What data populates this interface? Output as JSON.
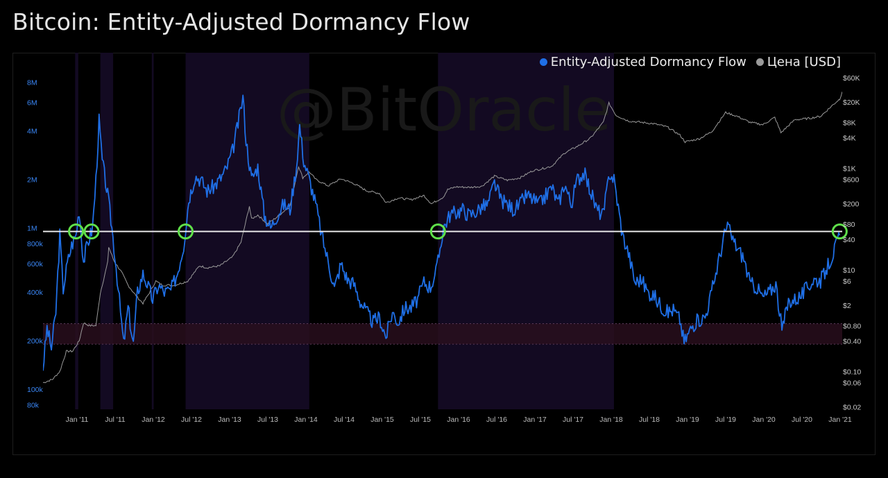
{
  "title": "Bitcoin: Entity-Adjusted Dormancy Flow",
  "watermark": "@BitOracle",
  "legend": [
    {
      "label": "Entity-Adjusted Dormancy Flow",
      "color": "#1f6fe6"
    },
    {
      "label": "Цена [USD]",
      "color": "#9a9a9a"
    }
  ],
  "chart_data": {
    "type": "line",
    "scale": "log",
    "x_ticks": [
      "Jan '11",
      "Jul '11",
      "Jan '12",
      "Jul '12",
      "Jan '13",
      "Jul '13",
      "Jan '14",
      "Jul '14",
      "Jan '15",
      "Jul '15",
      "Jan '16",
      "Jul '16",
      "Jan '17",
      "Jul '17",
      "Jan '18",
      "Jul '18",
      "Jan '19",
      "Jul '19",
      "Jan '20",
      "Jul '20",
      "Jan '21"
    ],
    "xlim": [
      "2010-08-01",
      "2021-01-01"
    ],
    "left_axis": {
      "ticks": [
        {
          "label": "8M",
          "value": 8000000
        },
        {
          "label": "6M",
          "value": 6000000
        },
        {
          "label": "4M",
          "value": 4000000
        },
        {
          "label": "2M",
          "value": 2000000
        },
        {
          "label": "1M",
          "value": 1000000
        },
        {
          "label": "800k",
          "value": 800000
        },
        {
          "label": "600k",
          "value": 600000
        },
        {
          "label": "400k",
          "value": 400000
        },
        {
          "label": "200k",
          "value": 200000
        },
        {
          "label": "100k",
          "value": 100000
        },
        {
          "label": "80k",
          "value": 80000
        }
      ],
      "ylim": [
        75000,
        10000000
      ]
    },
    "right_axis": {
      "ticks": [
        {
          "label": "$60K",
          "value": 60000
        },
        {
          "label": "$20K",
          "value": 20000
        },
        {
          "label": "$8K",
          "value": 8000
        },
        {
          "label": "$4K",
          "value": 4000
        },
        {
          "label": "$1K",
          "value": 1000
        },
        {
          "label": "$600",
          "value": 600
        },
        {
          "label": "$200",
          "value": 200
        },
        {
          "label": "$80",
          "value": 80
        },
        {
          "label": "$40",
          "value": 40
        },
        {
          "label": "$10",
          "value": 10
        },
        {
          "label": "$6",
          "value": 6
        },
        {
          "label": "$2",
          "value": 2
        },
        {
          "label": "$0.80",
          "value": 0.8
        },
        {
          "label": "$0.40",
          "value": 0.4
        },
        {
          "label": "$0.10",
          "value": 0.1
        },
        {
          "label": "$0.06",
          "value": 0.06
        },
        {
          "label": "$0.02",
          "value": 0.02
        }
      ],
      "ylim": [
        0.018,
        100000
      ]
    },
    "threshold": 950000,
    "band": [
      190000,
      255000
    ],
    "bear_periods": [
      [
        "2011-01-01",
        "2011-01-16"
      ],
      [
        "2011-05-01",
        "2011-07-01"
      ],
      [
        "2012-01-01",
        "2012-01-10"
      ],
      [
        "2012-06-10",
        "2014-01-20"
      ],
      [
        "2015-09-25",
        "2018-01-10"
      ]
    ],
    "markers": [
      "2011-01-05",
      "2011-03-20",
      "2012-06-10",
      "2015-09-25",
      "2020-12-20"
    ],
    "series": [
      {
        "name": "Entity-Adjusted Dormancy Flow",
        "color": "#1f6fe6",
        "points": [
          [
            "2010-08-01",
            135000
          ],
          [
            "2010-08-20",
            240000
          ],
          [
            "2010-09-10",
            180000
          ],
          [
            "2010-10-01",
            300000
          ],
          [
            "2010-10-20",
            900000
          ],
          [
            "2010-11-05",
            420000
          ],
          [
            "2010-11-25",
            600000
          ],
          [
            "2010-12-15",
            780000
          ],
          [
            "2011-01-05",
            900000
          ],
          [
            "2011-01-20",
            1300000
          ],
          [
            "2011-02-10",
            620000
          ],
          [
            "2011-03-01",
            800000
          ],
          [
            "2011-03-25",
            1000000
          ],
          [
            "2011-04-10",
            2000000
          ],
          [
            "2011-04-25",
            4600000
          ],
          [
            "2011-05-10",
            2600000
          ],
          [
            "2011-06-05",
            1600000
          ],
          [
            "2011-06-25",
            1000000
          ],
          [
            "2011-07-15",
            580000
          ],
          [
            "2011-08-05",
            300000
          ],
          [
            "2011-08-20",
            190000
          ],
          [
            "2011-09-10",
            320000
          ],
          [
            "2011-10-05",
            190000
          ],
          [
            "2011-10-25",
            400000
          ],
          [
            "2011-11-20",
            520000
          ],
          [
            "2011-12-10",
            450000
          ],
          [
            "2012-01-05",
            360000
          ],
          [
            "2012-02-01",
            440000
          ],
          [
            "2012-03-01",
            400000
          ],
          [
            "2012-04-01",
            410000
          ],
          [
            "2012-05-01",
            520000
          ],
          [
            "2012-06-01",
            780000
          ],
          [
            "2012-06-25",
            1500000
          ],
          [
            "2012-07-25",
            2100000
          ],
          [
            "2012-08-20",
            2000000
          ],
          [
            "2012-09-20",
            1700000
          ],
          [
            "2012-10-20",
            1800000
          ],
          [
            "2012-11-20",
            2000000
          ],
          [
            "2012-12-20",
            2300000
          ],
          [
            "2013-01-20",
            3000000
          ],
          [
            "2013-02-20",
            4800000
          ],
          [
            "2013-03-10",
            6500000
          ],
          [
            "2013-03-25",
            3500000
          ],
          [
            "2013-04-20",
            2000000
          ],
          [
            "2013-05-20",
            2400000
          ],
          [
            "2013-06-20",
            1200000
          ],
          [
            "2013-07-20",
            1000000
          ],
          [
            "2013-08-20",
            1200000
          ],
          [
            "2013-09-20",
            1400000
          ],
          [
            "2013-10-20",
            1300000
          ],
          [
            "2013-11-20",
            2400000
          ],
          [
            "2013-12-05",
            4300000
          ],
          [
            "2013-12-25",
            2600000
          ],
          [
            "2014-01-20",
            2000000
          ],
          [
            "2014-02-20",
            1400000
          ],
          [
            "2014-03-20",
            900000
          ],
          [
            "2014-04-20",
            620000
          ],
          [
            "2014-05-20",
            420000
          ],
          [
            "2014-06-20",
            600000
          ],
          [
            "2014-07-20",
            480000
          ],
          [
            "2014-08-20",
            450000
          ],
          [
            "2014-09-20",
            350000
          ],
          [
            "2014-10-20",
            300000
          ],
          [
            "2014-11-20",
            260000
          ],
          [
            "2014-12-20",
            280000
          ],
          [
            "2015-01-20",
            210000
          ],
          [
            "2015-02-20",
            300000
          ],
          [
            "2015-03-20",
            260000
          ],
          [
            "2015-04-20",
            320000
          ],
          [
            "2015-05-20",
            320000
          ],
          [
            "2015-06-20",
            360000
          ],
          [
            "2015-07-20",
            460000
          ],
          [
            "2015-08-20",
            430000
          ],
          [
            "2015-09-20",
            560000
          ],
          [
            "2015-10-20",
            1000000
          ],
          [
            "2015-11-20",
            1200000
          ],
          [
            "2015-12-20",
            1250000
          ],
          [
            "2016-01-20",
            1300000
          ],
          [
            "2016-02-20",
            1200000
          ],
          [
            "2016-03-20",
            1250000
          ],
          [
            "2016-04-20",
            1350000
          ],
          [
            "2016-05-20",
            1400000
          ],
          [
            "2016-06-20",
            1900000
          ],
          [
            "2016-07-20",
            1500000
          ],
          [
            "2016-08-20",
            1400000
          ],
          [
            "2016-09-20",
            1300000
          ],
          [
            "2016-10-20",
            1400000
          ],
          [
            "2016-11-20",
            1600000
          ],
          [
            "2016-12-20",
            1500000
          ],
          [
            "2017-01-20",
            1400000
          ],
          [
            "2017-02-20",
            1600000
          ],
          [
            "2017-03-20",
            1800000
          ],
          [
            "2017-04-20",
            1400000
          ],
          [
            "2017-05-20",
            1900000
          ],
          [
            "2017-06-20",
            1400000
          ],
          [
            "2017-07-20",
            2000000
          ],
          [
            "2017-08-20",
            2200000
          ],
          [
            "2017-09-20",
            1700000
          ],
          [
            "2017-10-20",
            1300000
          ],
          [
            "2017-11-20",
            1200000
          ],
          [
            "2017-12-20",
            2200000
          ],
          [
            "2018-01-10",
            2000000
          ],
          [
            "2018-02-20",
            900000
          ],
          [
            "2018-03-20",
            700000
          ],
          [
            "2018-04-20",
            460000
          ],
          [
            "2018-05-20",
            480000
          ],
          [
            "2018-06-20",
            400000
          ],
          [
            "2018-07-20",
            380000
          ],
          [
            "2018-08-20",
            330000
          ],
          [
            "2018-09-20",
            300000
          ],
          [
            "2018-10-20",
            310000
          ],
          [
            "2018-11-20",
            270000
          ],
          [
            "2018-12-10",
            195000
          ],
          [
            "2019-01-20",
            250000
          ],
          [
            "2019-02-20",
            270000
          ],
          [
            "2019-03-20",
            280000
          ],
          [
            "2019-04-20",
            400000
          ],
          [
            "2019-05-20",
            600000
          ],
          [
            "2019-06-20",
            900000
          ],
          [
            "2019-07-05",
            1050000
          ],
          [
            "2019-07-20",
            900000
          ],
          [
            "2019-08-20",
            750000
          ],
          [
            "2019-09-20",
            650000
          ],
          [
            "2019-10-20",
            450000
          ],
          [
            "2019-11-20",
            430000
          ],
          [
            "2019-12-20",
            370000
          ],
          [
            "2020-01-20",
            400000
          ],
          [
            "2020-02-20",
            450000
          ],
          [
            "2020-03-20",
            230000
          ],
          [
            "2020-04-20",
            350000
          ],
          [
            "2020-05-20",
            360000
          ],
          [
            "2020-06-20",
            380000
          ],
          [
            "2020-07-20",
            430000
          ],
          [
            "2020-08-20",
            480000
          ],
          [
            "2020-09-20",
            470000
          ],
          [
            "2020-10-20",
            560000
          ],
          [
            "2020-11-20",
            700000
          ],
          [
            "2020-12-20",
            900000
          ]
        ]
      },
      {
        "name": "Цена [USD]",
        "color": "#9a9a9a",
        "points": [
          [
            "2010-08-01",
            0.06
          ],
          [
            "2010-09-15",
            0.07
          ],
          [
            "2010-10-20",
            0.1
          ],
          [
            "2010-11-20",
            0.25
          ],
          [
            "2010-12-20",
            0.25
          ],
          [
            "2011-01-20",
            0.4
          ],
          [
            "2011-02-10",
            0.9
          ],
          [
            "2011-03-10",
            0.8
          ],
          [
            "2011-04-10",
            0.8
          ],
          [
            "2011-05-01",
            3.5
          ],
          [
            "2011-06-05",
            14
          ],
          [
            "2011-06-10",
            28
          ],
          [
            "2011-07-05",
            15
          ],
          [
            "2011-08-10",
            9
          ],
          [
            "2011-09-10",
            5
          ],
          [
            "2011-10-20",
            3
          ],
          [
            "2011-11-20",
            2.2
          ],
          [
            "2011-12-20",
            3.5
          ],
          [
            "2012-01-20",
            6
          ],
          [
            "2012-02-20",
            5
          ],
          [
            "2012-04-20",
            5
          ],
          [
            "2012-06-20",
            6
          ],
          [
            "2012-08-15",
            12
          ],
          [
            "2012-09-20",
            11
          ],
          [
            "2012-11-20",
            12
          ],
          [
            "2013-01-20",
            18
          ],
          [
            "2013-03-01",
            35
          ],
          [
            "2013-04-10",
            180
          ],
          [
            "2013-04-20",
            100
          ],
          [
            "2013-05-20",
            120
          ],
          [
            "2013-07-05",
            80
          ],
          [
            "2013-08-20",
            110
          ],
          [
            "2013-10-20",
            180
          ],
          [
            "2013-11-30",
            1100
          ],
          [
            "2013-12-20",
            650
          ],
          [
            "2014-01-20",
            850
          ],
          [
            "2014-02-20",
            600
          ],
          [
            "2014-04-20",
            450
          ],
          [
            "2014-06-20",
            620
          ],
          [
            "2014-08-20",
            500
          ],
          [
            "2014-10-20",
            360
          ],
          [
            "2014-12-20",
            320
          ],
          [
            "2015-01-20",
            210
          ],
          [
            "2015-03-20",
            260
          ],
          [
            "2015-05-20",
            240
          ],
          [
            "2015-07-20",
            290
          ],
          [
            "2015-08-25",
            200
          ],
          [
            "2015-10-20",
            270
          ],
          [
            "2015-11-10",
            380
          ],
          [
            "2015-12-20",
            430
          ],
          [
            "2016-02-20",
            420
          ],
          [
            "2016-04-20",
            440
          ],
          [
            "2016-06-20",
            700
          ],
          [
            "2016-08-20",
            580
          ],
          [
            "2016-10-20",
            650
          ],
          [
            "2016-12-20",
            900
          ],
          [
            "2017-01-20",
            950
          ],
          [
            "2017-03-20",
            1100
          ],
          [
            "2017-05-20",
            2000
          ],
          [
            "2017-07-20",
            2700
          ],
          [
            "2017-09-20",
            3900
          ],
          [
            "2017-11-20",
            8000
          ],
          [
            "2017-12-17",
            19000
          ],
          [
            "2018-01-20",
            11000
          ],
          [
            "2018-03-20",
            8500
          ],
          [
            "2018-05-20",
            8000
          ],
          [
            "2018-07-20",
            7500
          ],
          [
            "2018-09-20",
            6500
          ],
          [
            "2018-11-20",
            4500
          ],
          [
            "2018-12-15",
            3300
          ],
          [
            "2019-02-20",
            3800
          ],
          [
            "2019-04-20",
            5200
          ],
          [
            "2019-06-26",
            12500
          ],
          [
            "2019-08-20",
            10500
          ],
          [
            "2019-10-20",
            8000
          ],
          [
            "2019-12-20",
            7200
          ],
          [
            "2020-02-15",
            10000
          ],
          [
            "2020-03-15",
            5000
          ],
          [
            "2020-05-20",
            9000
          ],
          [
            "2020-07-20",
            9500
          ],
          [
            "2020-09-20",
            10500
          ],
          [
            "2020-11-20",
            18000
          ],
          [
            "2020-12-20",
            23000
          ],
          [
            "2021-01-01",
            32000
          ]
        ]
      }
    ]
  }
}
